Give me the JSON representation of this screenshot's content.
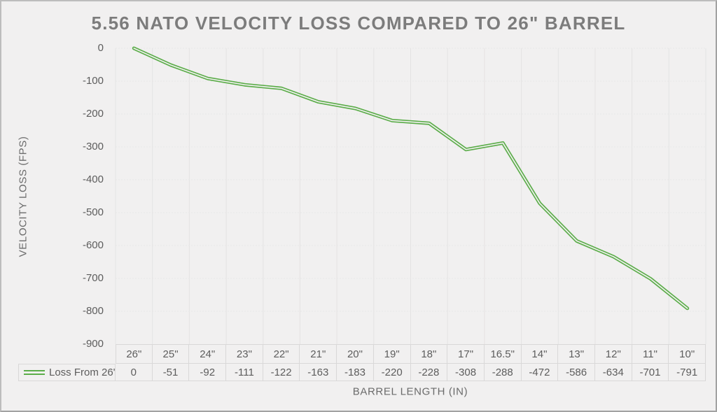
{
  "chart_data": {
    "type": "line",
    "title": "5.56 NATO VELOCITY LOSS COMPARED TO 26\" BARREL",
    "xlabel": "BARREL LENGTH (IN)",
    "ylabel": "VELOCITY LOSS (FPS)",
    "categories": [
      "26\"",
      "25\"",
      "24\"",
      "23\"",
      "22\"",
      "21\"",
      "20\"",
      "19\"",
      "18\"",
      "17\"",
      "16.5\"",
      "14\"",
      "13\"",
      "12\"",
      "11\"",
      "10\""
    ],
    "series": [
      {
        "name": "Loss From 26\"",
        "values": [
          0,
          -51,
          -92,
          -111,
          -122,
          -163,
          -183,
          -220,
          -228,
          -308,
          -288,
          -472,
          -586,
          -634,
          -701,
          -791
        ]
      }
    ],
    "ylim": [
      -900,
      0
    ],
    "yticks": [
      0,
      -100,
      -200,
      -300,
      -400,
      -500,
      -600,
      -700,
      -800,
      -900
    ],
    "grid": true,
    "legend_position": "table-left",
    "line_color": "#5cad4a",
    "line_style": "double",
    "background_color": "#f1f0f0"
  }
}
